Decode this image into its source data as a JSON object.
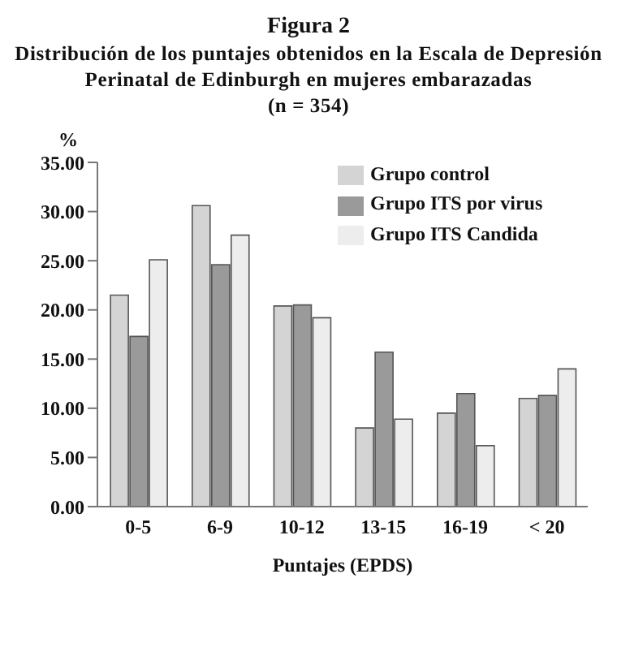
{
  "chart_data": {
    "type": "bar",
    "title": "Figura 2",
    "subtitle": "Distribución de los puntajes obtenidos en la Escala de Depresión Perinatal de Edinburgh en mujeres embarazadas\n(n = 354)",
    "xlabel": "Puntajes (EPDS)",
    "ylabel": "%",
    "categories": [
      "0-5",
      "6-9",
      "10-12",
      "13-15",
      "16-19",
      "< 20"
    ],
    "series": [
      {
        "name": "Grupo control",
        "color": "#d4d4d4",
        "values": [
          21.5,
          30.6,
          20.4,
          8.0,
          9.5,
          11.0
        ]
      },
      {
        "name": "Grupo ITS por virus",
        "color": "#9a9a9a",
        "values": [
          17.3,
          24.6,
          20.5,
          15.7,
          11.5,
          11.3
        ]
      },
      {
        "name": "Grupo ITS Candida",
        "color": "#ededed",
        "values": [
          25.1,
          27.6,
          19.2,
          8.9,
          6.2,
          14.0
        ]
      }
    ],
    "ylim": [
      0,
      35
    ],
    "yticks": [
      {
        "value": 0,
        "label": "0.00"
      },
      {
        "value": 5,
        "label": "5.00"
      },
      {
        "value": 10,
        "label": "10.00"
      },
      {
        "value": 15,
        "label": "15.00"
      },
      {
        "value": 20,
        "label": "20.00"
      },
      {
        "value": 25,
        "label": "25.00"
      },
      {
        "value": 30,
        "label": "30.00"
      },
      {
        "value": 35,
        "label": "35.00"
      }
    ],
    "grid": false,
    "legend": "top right"
  }
}
